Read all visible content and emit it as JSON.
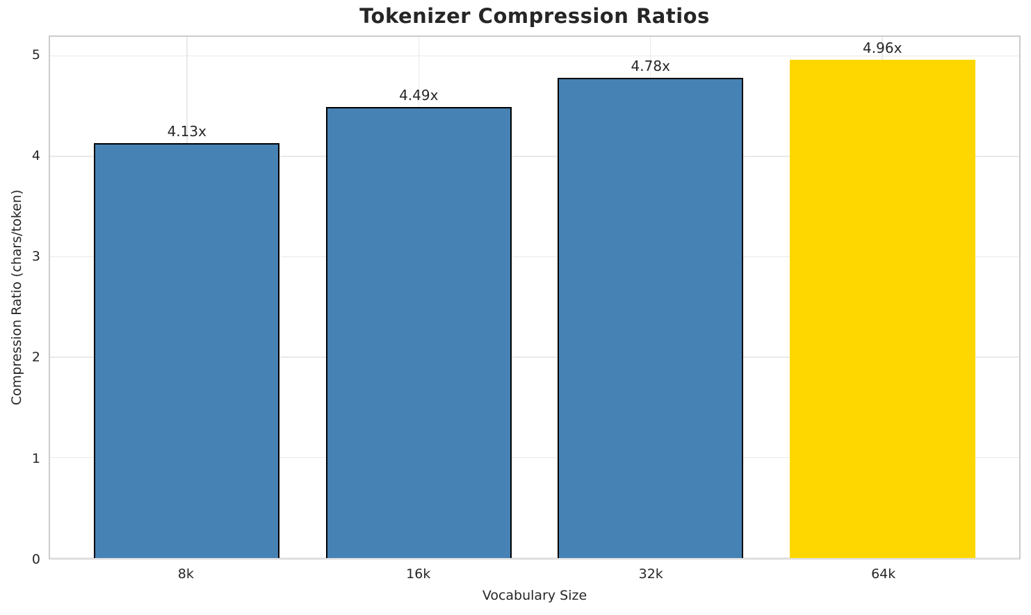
{
  "chart_data": {
    "type": "bar",
    "title": "Tokenizer Compression Ratios",
    "xlabel": "Vocabulary Size",
    "ylabel": "Compression Ratio (chars/token)",
    "categories": [
      "8k",
      "16k",
      "32k",
      "64k"
    ],
    "values": [
      4.13,
      4.49,
      4.78,
      4.96
    ],
    "bar_labels": [
      "4.13x",
      "4.49x",
      "4.78x",
      "4.96x"
    ],
    "yticks": [
      0,
      1,
      2,
      3,
      4,
      5
    ],
    "ylim": [
      0,
      5.19
    ],
    "grid": true,
    "legend": "none",
    "bar_colors": [
      "#4682B4",
      "#4682B4",
      "#4682B4",
      "#FFD700"
    ],
    "bar_edge_colors": [
      "#000000",
      "#000000",
      "#000000",
      "none"
    ],
    "highlight_index": 3
  },
  "colors": {
    "steelblue": "#4682B4",
    "gold": "#FFD700",
    "spine": "#cccccc",
    "grid": "#e9e9e9",
    "text": "#262626",
    "background": "#ffffff"
  }
}
